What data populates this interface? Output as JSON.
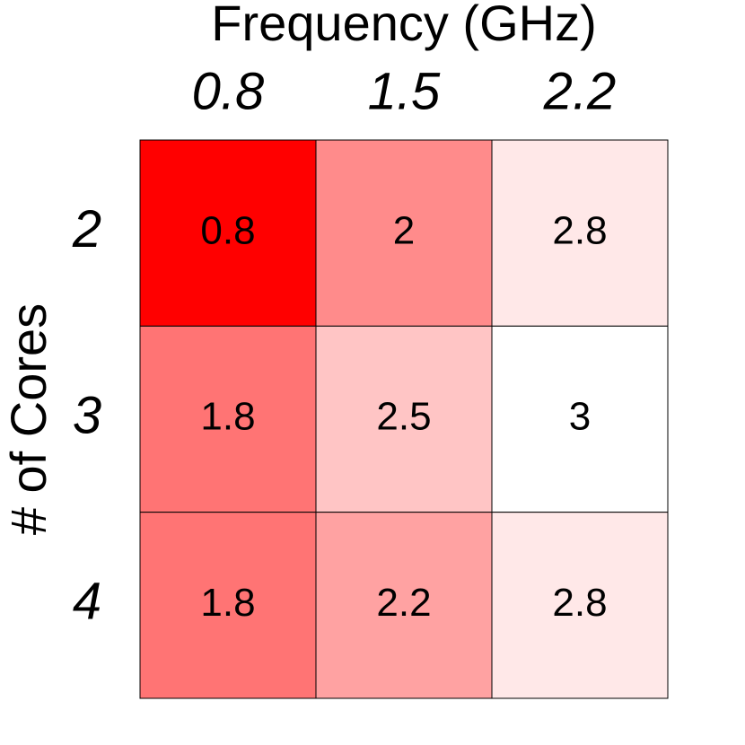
{
  "chart_data": {
    "type": "heatmap",
    "x_label": "Frequency (GHz)",
    "y_label": "# of Cores",
    "x_categories": [
      "0.8",
      "1.5",
      "2.2"
    ],
    "y_categories": [
      "2",
      "3",
      "4"
    ],
    "values": [
      [
        0.8,
        2,
        2.8
      ],
      [
        1.8,
        2.5,
        3
      ],
      [
        1.8,
        2.2,
        2.8
      ]
    ],
    "color_low": "#ff0000",
    "color_high": "#ffffff"
  }
}
